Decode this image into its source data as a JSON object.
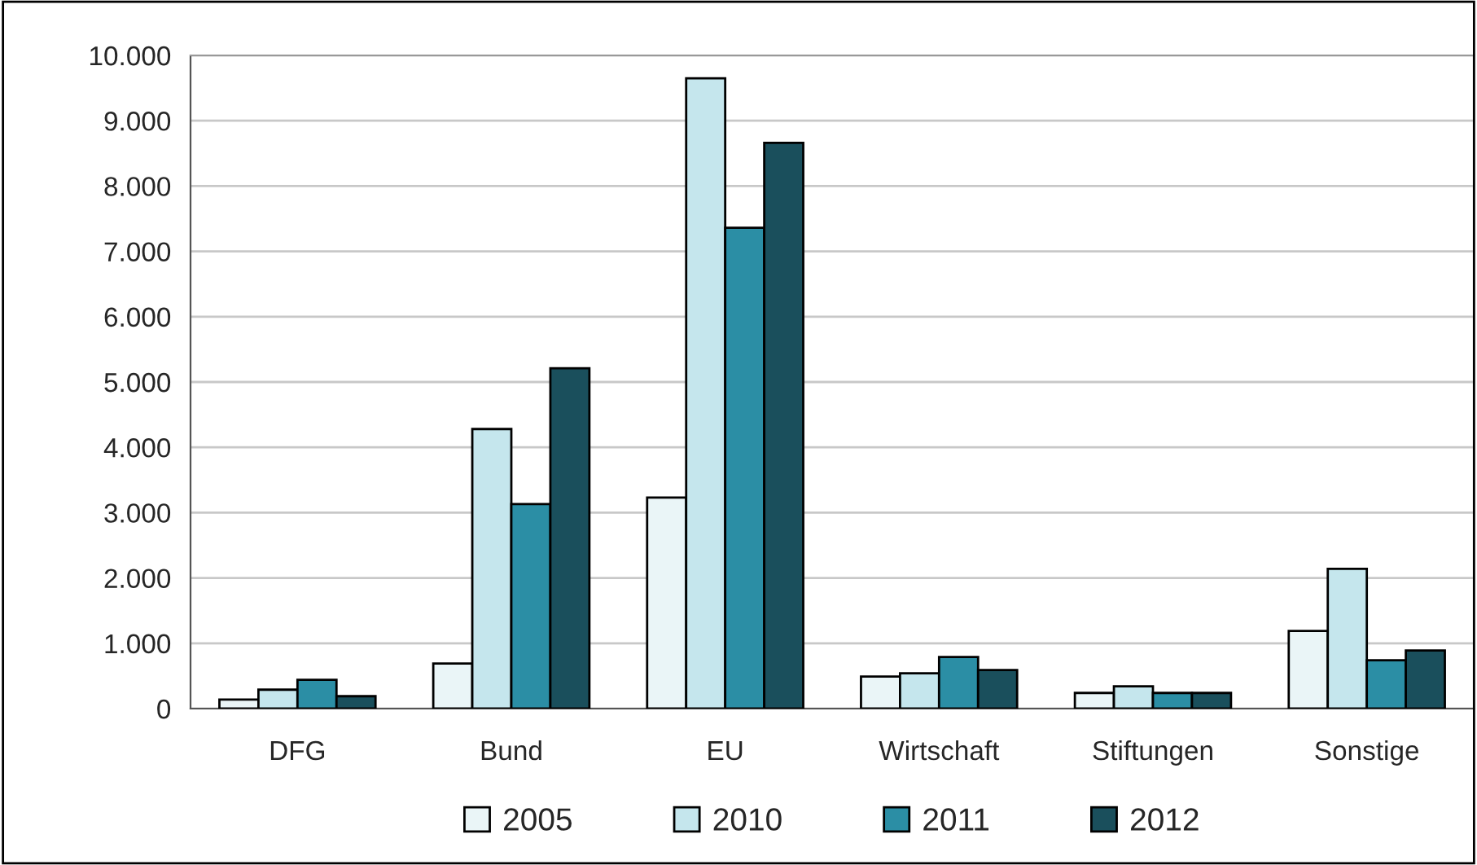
{
  "chart_data": {
    "type": "bar",
    "categories": [
      "DFG",
      "Bund",
      "EU",
      "Wirtschaft",
      "Stiftungen",
      "Sonstige"
    ],
    "series": [
      {
        "name": "2005",
        "color": "#eaf5f7",
        "values": [
          140,
          690,
          3230,
          490,
          240,
          1190
        ]
      },
      {
        "name": "2010",
        "color": "#c5e6ed",
        "values": [
          290,
          4280,
          9650,
          540,
          340,
          2140
        ]
      },
      {
        "name": "2011",
        "color": "#2b8ea5",
        "values": [
          440,
          3130,
          7360,
          790,
          240,
          740
        ]
      },
      {
        "name": "2012",
        "color": "#1a4f5c",
        "values": [
          190,
          5210,
          8660,
          590,
          240,
          890
        ]
      }
    ],
    "ylim": [
      0,
      10000
    ],
    "yticks": [
      0,
      {
        "value": 1000,
        "label": "1.000"
      },
      {
        "value": 2000,
        "label": "2.000"
      },
      {
        "value": 3000,
        "label": "3.000"
      },
      {
        "value": 4000,
        "label": "4.000"
      },
      {
        "value": 5000,
        "label": "5.000"
      },
      {
        "value": 6000,
        "label": "6.000"
      },
      {
        "value": 7000,
        "label": "7.000"
      },
      {
        "value": 8000,
        "label": "8.000"
      },
      {
        "value": 9000,
        "label": "9.000"
      },
      {
        "value": 10000,
        "label": "10.000"
      }
    ],
    "grid": "y",
    "legend": "bottom"
  }
}
